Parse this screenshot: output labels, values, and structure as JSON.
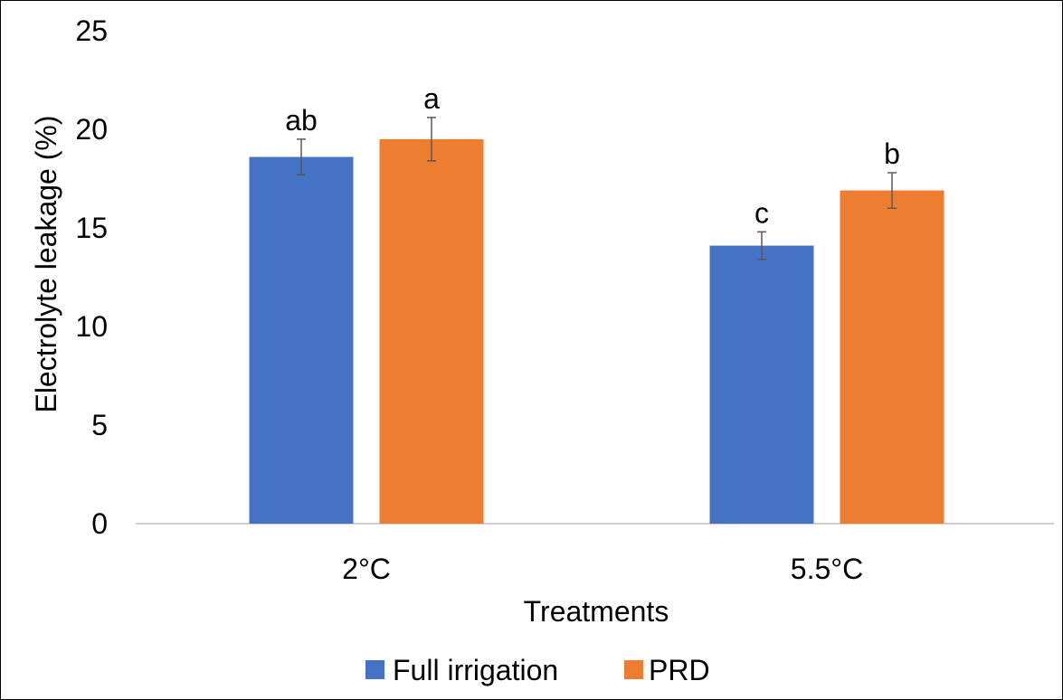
{
  "chart_data": {
    "type": "bar",
    "categories": [
      "2°C",
      "5.5°C"
    ],
    "series": [
      {
        "name": "Full irrigation",
        "color": "#4472C4",
        "values": [
          18.6,
          14.1
        ],
        "error": [
          0.9,
          0.7
        ],
        "labels": [
          "ab",
          "c"
        ]
      },
      {
        "name": "PRD",
        "color": "#ED7D31",
        "values": [
          19.5,
          16.9
        ],
        "error": [
          1.1,
          0.9
        ],
        "labels": [
          "a",
          "b"
        ]
      }
    ],
    "title": "",
    "xlabel": "Treatments",
    "ylabel": "Electrolyte leakage (%)",
    "ylim": [
      0,
      25
    ],
    "yticks": [
      0,
      5,
      10,
      15,
      20,
      25
    ],
    "grid": false,
    "legend_position": "bottom"
  }
}
